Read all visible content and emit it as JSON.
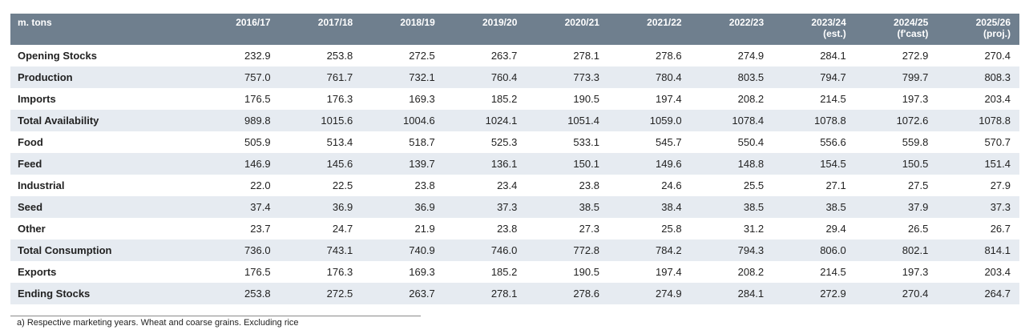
{
  "table": {
    "unit_label": "m. tons",
    "columns": [
      {
        "year": "2016/17",
        "note": ""
      },
      {
        "year": "2017/18",
        "note": ""
      },
      {
        "year": "2018/19",
        "note": ""
      },
      {
        "year": "2019/20",
        "note": ""
      },
      {
        "year": "2020/21",
        "note": ""
      },
      {
        "year": "2021/22",
        "note": ""
      },
      {
        "year": "2022/23",
        "note": ""
      },
      {
        "year": "2023/24",
        "note": "(est.)"
      },
      {
        "year": "2024/25",
        "note": "(f'cast)"
      },
      {
        "year": "2025/26",
        "note": "(proj.)"
      }
    ],
    "rows": [
      {
        "label": "Opening Stocks",
        "values": [
          "232.9",
          "253.8",
          "272.5",
          "263.7",
          "278.1",
          "278.6",
          "274.9",
          "284.1",
          "272.9",
          "270.4"
        ]
      },
      {
        "label": "Production",
        "values": [
          "757.0",
          "761.7",
          "732.1",
          "760.4",
          "773.3",
          "780.4",
          "803.5",
          "794.7",
          "799.7",
          "808.3"
        ]
      },
      {
        "label": "Imports",
        "values": [
          "176.5",
          "176.3",
          "169.3",
          "185.2",
          "190.5",
          "197.4",
          "208.2",
          "214.5",
          "197.3",
          "203.4"
        ]
      },
      {
        "label": "Total Availability",
        "values": [
          "989.8",
          "1015.6",
          "1004.6",
          "1024.1",
          "1051.4",
          "1059.0",
          "1078.4",
          "1078.8",
          "1072.6",
          "1078.8"
        ]
      },
      {
        "label": "Food",
        "values": [
          "505.9",
          "513.4",
          "518.7",
          "525.3",
          "533.1",
          "545.7",
          "550.4",
          "556.6",
          "559.8",
          "570.7"
        ]
      },
      {
        "label": "Feed",
        "values": [
          "146.9",
          "145.6",
          "139.7",
          "136.1",
          "150.1",
          "149.6",
          "148.8",
          "154.5",
          "150.5",
          "151.4"
        ]
      },
      {
        "label": "Industrial",
        "values": [
          "22.0",
          "22.5",
          "23.8",
          "23.4",
          "23.8",
          "24.6",
          "25.5",
          "27.1",
          "27.5",
          "27.9"
        ]
      },
      {
        "label": "Seed",
        "values": [
          "37.4",
          "36.9",
          "36.9",
          "37.3",
          "38.5",
          "38.4",
          "38.5",
          "38.5",
          "37.9",
          "37.3"
        ]
      },
      {
        "label": "Other",
        "values": [
          "23.7",
          "24.7",
          "21.9",
          "23.8",
          "27.3",
          "25.8",
          "31.2",
          "29.4",
          "26.5",
          "26.7"
        ]
      },
      {
        "label": "Total Consumption",
        "values": [
          "736.0",
          "743.1",
          "740.9",
          "746.0",
          "772.8",
          "784.2",
          "794.3",
          "806.0",
          "802.1",
          "814.1"
        ]
      },
      {
        "label": "Exports",
        "values": [
          "176.5",
          "176.3",
          "169.3",
          "185.2",
          "190.5",
          "197.4",
          "208.2",
          "214.5",
          "197.3",
          "203.4"
        ]
      },
      {
        "label": "Ending Stocks",
        "values": [
          "253.8",
          "272.5",
          "263.7",
          "278.1",
          "278.6",
          "274.9",
          "284.1",
          "272.9",
          "270.4",
          "264.7"
        ]
      }
    ]
  },
  "footnote": "a) Respective marketing years. Wheat and coarse grains. Excluding rice",
  "colors": {
    "header_bg": "#6f7f8e",
    "header_text": "#ffffff",
    "stripe": "#e6ebf1"
  }
}
